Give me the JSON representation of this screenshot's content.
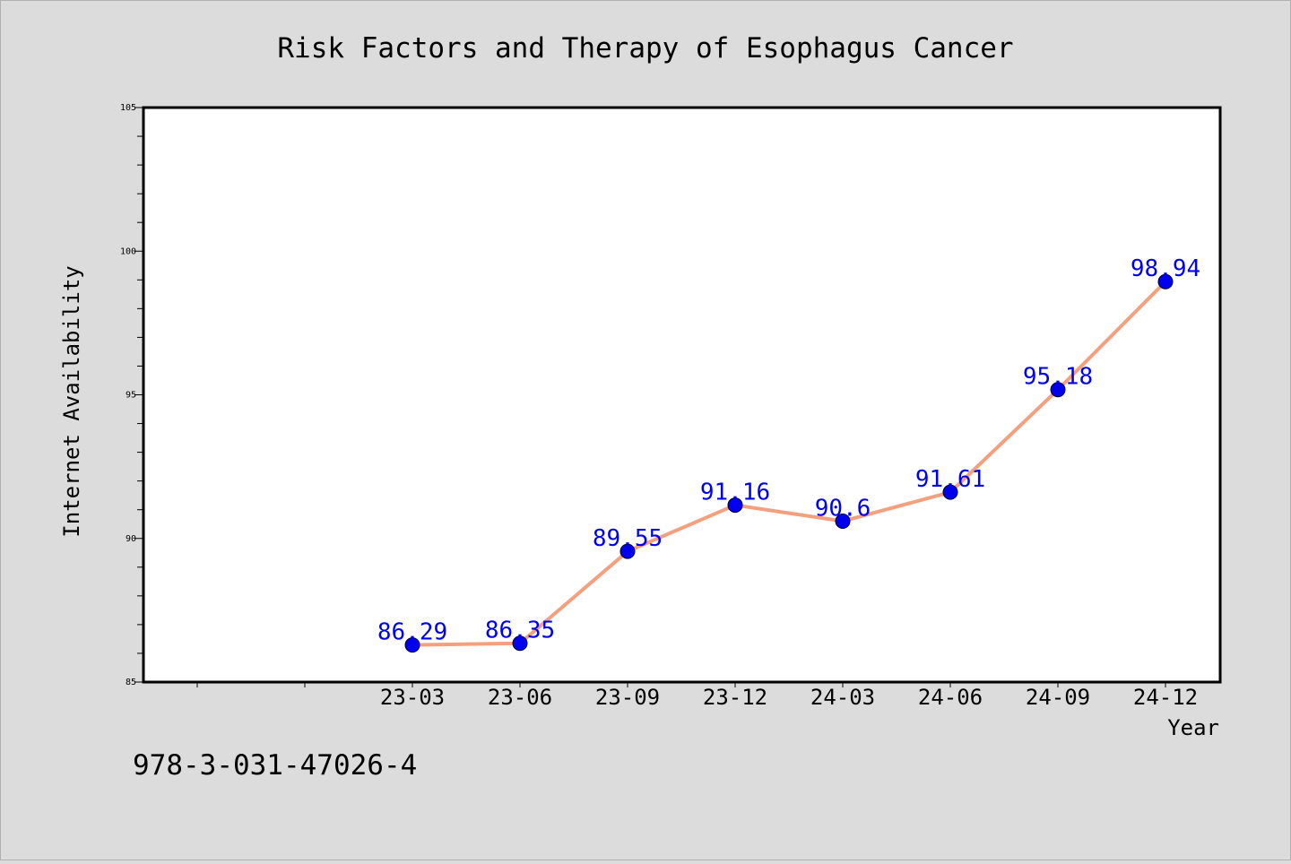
{
  "chart_data": {
    "type": "line",
    "title": "Risk Factors and Therapy of Esophagus Cancer",
    "xlabel": "Year",
    "ylabel": "Internet Availability",
    "categories": [
      "23-03",
      "23-06",
      "23-09",
      "23-12",
      "24-03",
      "24-06",
      "24-09",
      "24-12"
    ],
    "values": [
      86.29,
      86.35,
      89.55,
      91.16,
      90.6,
      91.61,
      95.18,
      98.94
    ],
    "value_labels": [
      "86.29",
      "86.35",
      "89.55",
      "91.16",
      "90.6",
      "91.61",
      "95.18",
      "98.94"
    ],
    "ylim": [
      85,
      105
    ],
    "y_ticks": [
      "85",
      "90",
      "95",
      "100",
      "105"
    ],
    "grid": false,
    "colors": {
      "line": "#f4a07f",
      "marker": "#0000ee",
      "label": "#0000ee",
      "background": "#dcdcdc",
      "plot_background": "#ffffff"
    }
  },
  "footer": {
    "isbn": "978-3-031-47026-4"
  }
}
